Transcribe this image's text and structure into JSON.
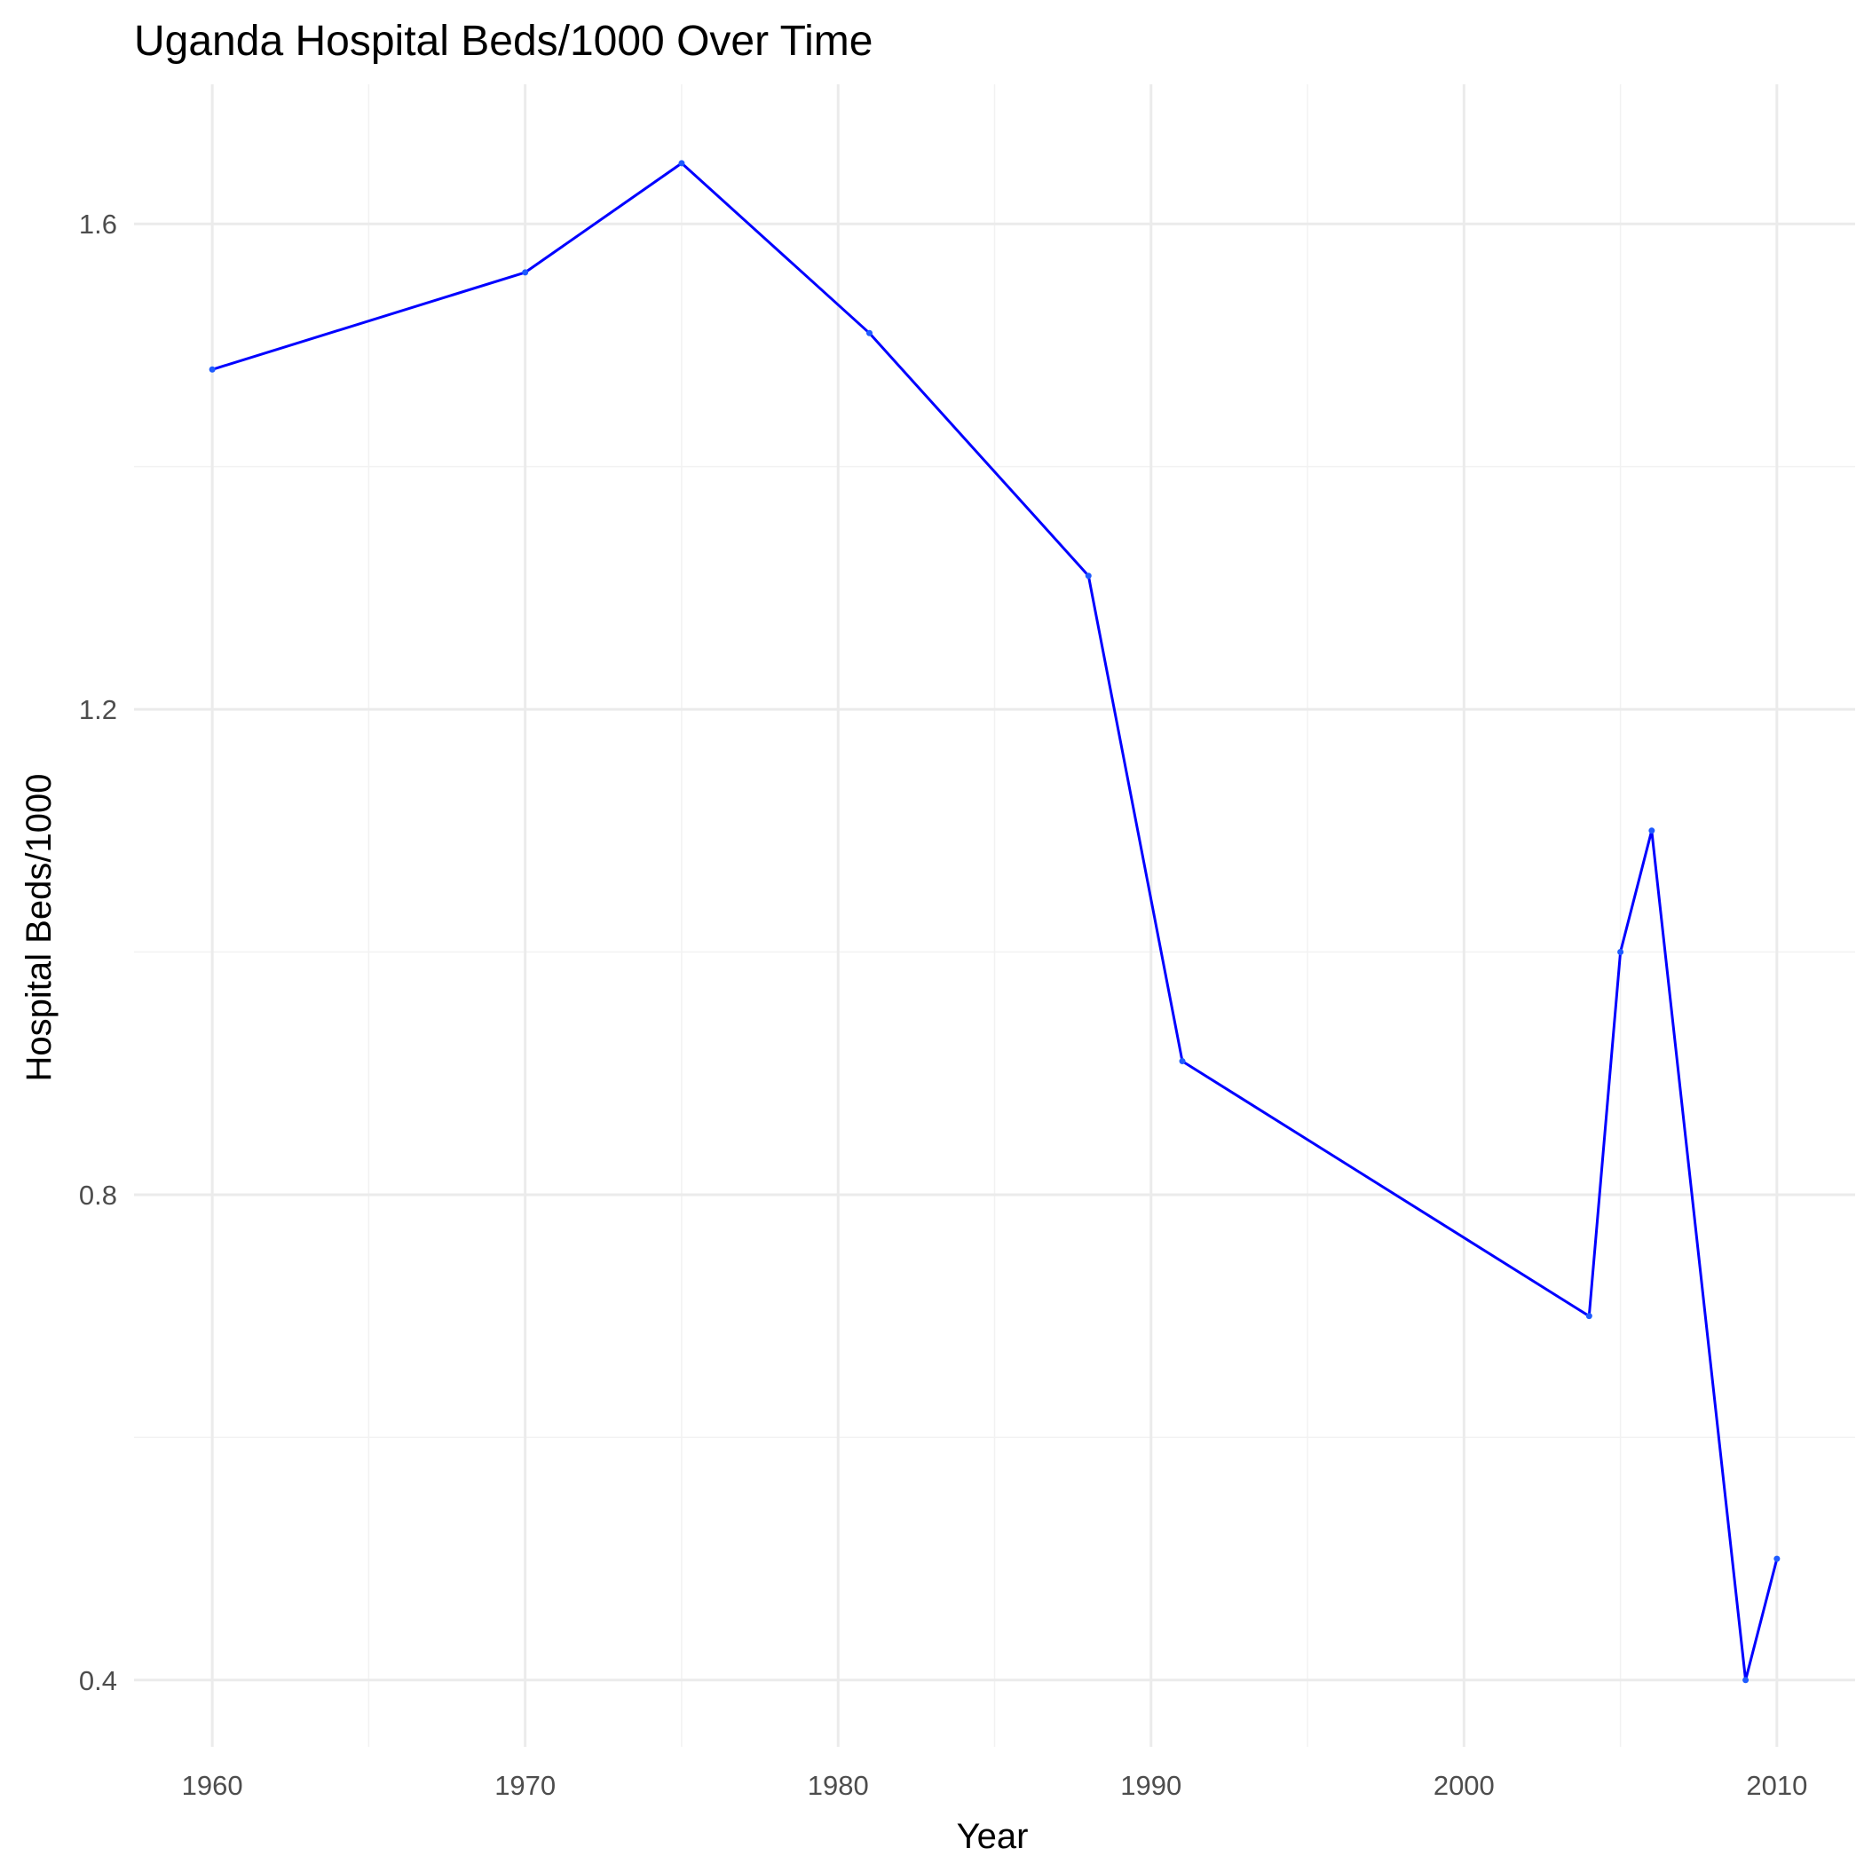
{
  "chart_data": {
    "type": "line",
    "title": "Uganda Hospital Beds/1000 Over Time",
    "xlabel": "Year",
    "ylabel": "Hospital Beds/1000",
    "xlim": [
      1957.5,
      2012.5
    ],
    "ylim": [
      0.345,
      1.715
    ],
    "x_ticks": [
      1960,
      1970,
      1980,
      1990,
      2000,
      2010
    ],
    "y_ticks": [
      0.4,
      0.8,
      1.2,
      1.6
    ],
    "y_tick_labels": [
      "0.4",
      "0.8",
      "1.2",
      "1.6"
    ],
    "grid": true,
    "legend": "none",
    "color": "#0000ff",
    "series": [
      {
        "x": [
          1960,
          1970,
          1975,
          1981,
          1988,
          1991,
          2004,
          2005,
          2006,
          2009,
          2010
        ],
        "values": [
          1.48,
          1.56,
          1.65,
          1.51,
          1.31,
          0.91,
          0.7,
          1.0,
          1.1,
          0.4,
          0.5
        ]
      }
    ]
  }
}
